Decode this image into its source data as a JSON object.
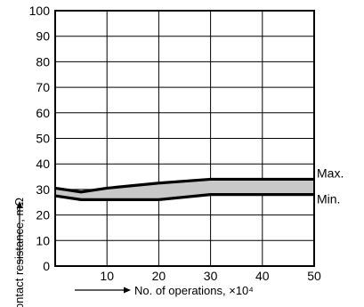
{
  "chart_data": {
    "type": "area",
    "title": "",
    "xlabel": "No. of operations, ×10⁴",
    "ylabel": "Contact resistance, mΩ",
    "xlim": [
      0,
      50
    ],
    "ylim": [
      0,
      100
    ],
    "xticks": [
      "10",
      "20",
      "30",
      "40",
      "50"
    ],
    "yticks": [
      "0",
      "10",
      "20",
      "30",
      "40",
      "50",
      "60",
      "70",
      "80",
      "90",
      "100"
    ],
    "grid": true,
    "band_fill": "#c8c8c8",
    "line_color": "#000000",
    "series": [
      {
        "name": "Max.",
        "x": [
          0,
          5,
          10,
          20,
          30,
          50
        ],
        "values": [
          30.5,
          29,
          30.5,
          32.5,
          34,
          34
        ]
      },
      {
        "name": "Min.",
        "x": [
          0,
          5,
          10,
          20,
          30,
          50
        ],
        "values": [
          27.5,
          26,
          26,
          26,
          28,
          28
        ]
      }
    ]
  }
}
